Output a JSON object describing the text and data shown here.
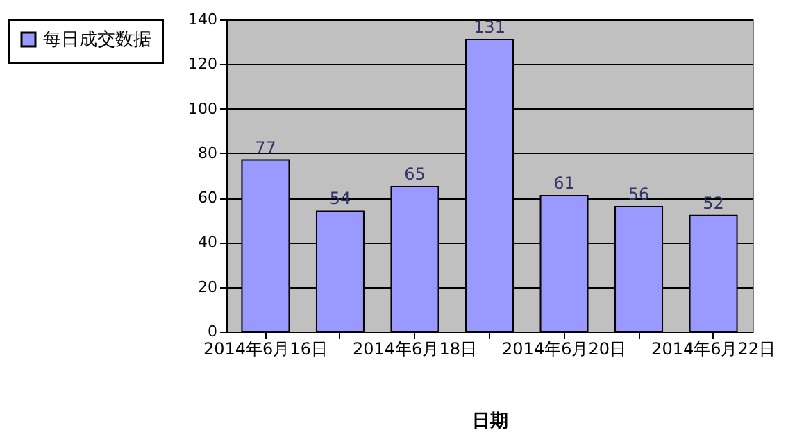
{
  "chart_data": {
    "type": "bar",
    "categories": [
      "2014年6月16日",
      null,
      "2014年6月18日",
      null,
      "2014年6月20日",
      null,
      "2014年6月22日"
    ],
    "series": [
      {
        "name": "每日成交数据",
        "color": "#9999ff",
        "values": [
          77,
          54,
          65,
          131,
          61,
          56,
          52
        ]
      }
    ],
    "ylim": [
      0,
      140
    ],
    "yticks": [
      0,
      20,
      40,
      60,
      80,
      100,
      120,
      140
    ],
    "grid": "y",
    "legend": "left",
    "data_labels": true,
    "xlabel": "日期"
  }
}
